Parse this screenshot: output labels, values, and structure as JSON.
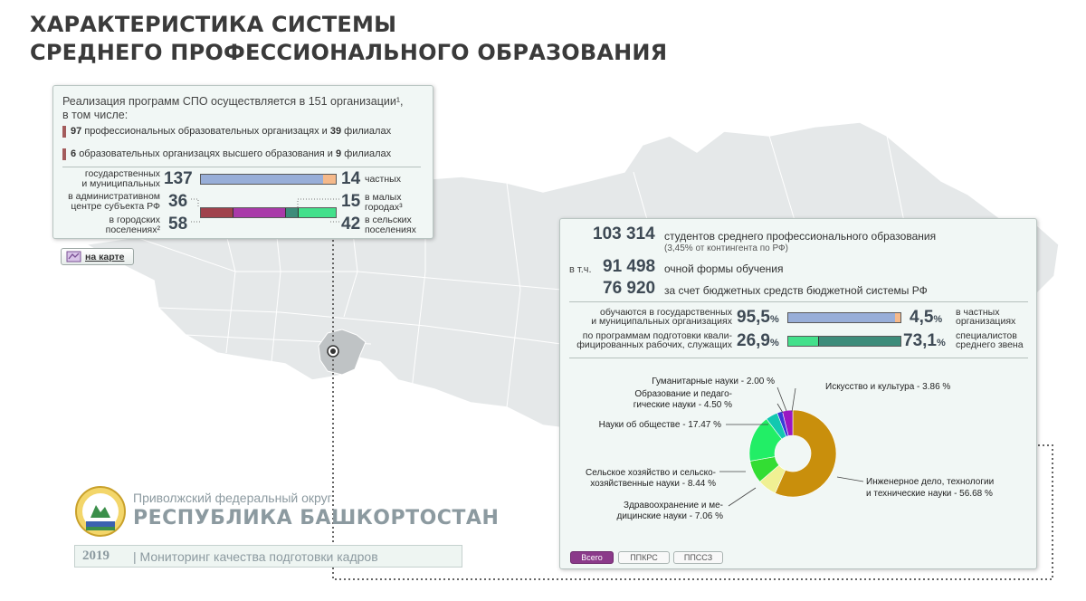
{
  "title": {
    "line1": "ХАРАКТЕРИСТИКА СИСТЕМЫ",
    "line2": "СРЕДНЕГО ПРОФЕССИОНАЛЬНОГО ОБРАЗОВАНИЯ"
  },
  "org_card": {
    "intro_line1": "Реализация программ СПО осуществляется в 151 организации¹,",
    "intro_line2": "в том числе:",
    "item1_num": "97",
    "item1_text": "профессиональных образовательных организацях и",
    "item1_num2": "39",
    "item1_text2": "филиалах",
    "item2_num": "6",
    "item2_text": "образовательных организацях высшего образования и",
    "item2_num2": "9",
    "item2_text2": "филиалах",
    "state_label_1": "государственных",
    "state_label_2": "и муниципальных",
    "state_value": "137",
    "private_value": "14",
    "private_label": "частных",
    "admin_label_1": "в административном",
    "admin_label_2": "центре субъекта РФ",
    "admin_value": "36",
    "small_value": "15",
    "small_label_1": "в малых",
    "small_label_2": "городах³",
    "urban_label_1": "в городских",
    "urban_label_2": "поселениях²",
    "urban_value": "58",
    "rural_value": "42",
    "rural_label_1": "в сельских",
    "rural_label_2": "поселениях",
    "bar1_fraction": 0.907,
    "bar2_fractions": [
      0.238,
      0.384,
      0.099,
      0.278
    ]
  },
  "map_button": {
    "label": "на карте"
  },
  "student_card": {
    "total": "103 314",
    "total_label": "студентов среднего профессионального образования",
    "share_note": "(3,45% от контингента по РФ)",
    "incl_prefix": "в т.ч.",
    "fulltime": "91 498",
    "fulltime_label": "очной формы обучения",
    "budget": "76 920",
    "budget_label": "за счет бюджетных средств бюджетной системы РФ",
    "state_label_1": "обучаются в государственных",
    "state_label_2": "и муниципальных организациях",
    "state_pct": "95,5",
    "private_pct": "4,5",
    "pct_sign": "%",
    "private_label_1": "в частных",
    "private_label_2": "организациях",
    "workers_label_1": "по программам подготовки квали-",
    "workers_label_2": "фицированных рабочих, служащих",
    "workers_pct": "26,9",
    "spec_pct": "73,1",
    "spec_label_1": "специалистов",
    "spec_label_2": "среднего звена"
  },
  "chart_data": {
    "type": "pie",
    "categories": [
      "Инженерное дело, технологии и технические науки",
      "Здравоохранение и медицинские науки",
      "Сельское хозяйство и сельскохозяйственные науки",
      "Науки об обществе",
      "Образование и педагогические науки",
      "Гуманитарные науки",
      "Искусство и культура"
    ],
    "values": [
      56.68,
      7.06,
      8.44,
      17.47,
      4.5,
      2.0,
      3.86
    ],
    "colors": [
      "#c98f0c",
      "#f0f093",
      "#33dd33",
      "#22ee66",
      "#12c8b0",
      "#3a3ad8",
      "#9b16c2"
    ],
    "labels": {
      "humanities": "Гуманитарные науки - 2.00 %",
      "education_1": "Образование и педаго-",
      "education_2": "гические науки - 4.50 %",
      "social": "Науки об обществе - 17.47 %",
      "agri_1": "Сельское хозяйство и сельско-",
      "agri_2": "хозяйственные науки - 8.44 %",
      "health_1": "Здравоохранение и ме-",
      "health_2": "дицинские науки - 7.06 %",
      "art": "Искусство и культура - 3.86 %",
      "eng_1": "Инженерное дело, технологии",
      "eng_2": "и технические науки - 56.68 %"
    }
  },
  "tabs": [
    "Всего",
    "ППКРС",
    "ППССЗ"
  ],
  "region": {
    "district": "Приволжский федеральный округ",
    "name": "РЕСПУБЛИКА БАШКОРТОСТАН",
    "year": "2019",
    "monitoring": "| Мониторинг качества подготовки кадров"
  },
  "colors": {
    "bar_blue": "#98aed8",
    "bar_orange": "#f5b98a",
    "bar_red": "#a0424c",
    "bar_magenta": "#a93aa9",
    "bar_teal": "#3d8c7a",
    "bar_green": "#43e08b",
    "tab_active": "#8b3a8a"
  }
}
